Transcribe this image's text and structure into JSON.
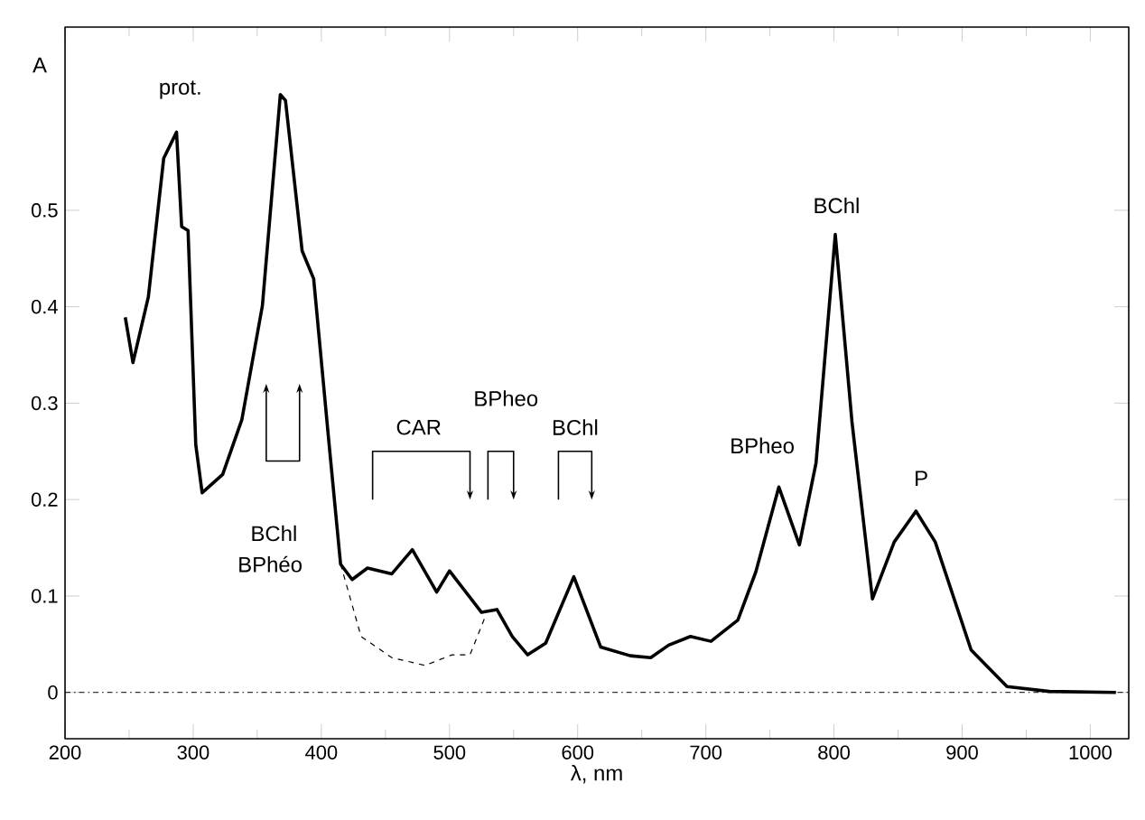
{
  "chart_data": {
    "type": "line",
    "xlabel": "λ, nm",
    "ylabel": "A",
    "xlim": [
      200,
      1030
    ],
    "ylim": [
      -0.048,
      0.69
    ],
    "xticks": [
      200,
      300,
      400,
      500,
      600,
      700,
      800,
      900,
      1000
    ],
    "yticks": [
      0,
      0.1,
      0.2,
      0.3,
      0.4,
      0.5
    ],
    "grid": false,
    "legend": false,
    "marker": "none",
    "series": [
      {
        "color": "#000000",
        "line_style": "solid",
        "x": [
          247,
          253,
          265,
          277,
          287,
          291,
          296,
          302,
          307,
          323,
          338,
          354,
          368,
          372,
          385,
          394,
          406,
          415,
          424,
          436,
          455,
          471,
          490,
          500,
          525,
          537,
          549,
          561,
          575,
          597,
          618,
          641,
          657,
          671,
          688,
          704,
          725,
          739,
          757,
          773,
          786,
          801,
          814,
          830,
          847,
          864,
          879,
          907,
          935,
          968,
          1020
        ],
        "values": [
          0.389,
          0.342,
          0.41,
          0.554,
          0.581,
          0.483,
          0.479,
          0.257,
          0.207,
          0.226,
          0.283,
          0.401,
          0.62,
          0.614,
          0.458,
          0.429,
          0.258,
          0.133,
          0.117,
          0.129,
          0.123,
          0.148,
          0.104,
          0.126,
          0.083,
          0.086,
          0.058,
          0.039,
          0.051,
          0.12,
          0.047,
          0.038,
          0.036,
          0.049,
          0.058,
          0.053,
          0.075,
          0.125,
          0.213,
          0.153,
          0.238,
          0.475,
          0.281,
          0.097,
          0.156,
          0.188,
          0.156,
          0.044,
          0.006,
          0.001,
          0
        ]
      },
      {
        "color": "#000000",
        "line_style": "dashed",
        "x": [
          415,
          431,
          455,
          481,
          502,
          516,
          528
        ],
        "values": [
          0.133,
          0.058,
          0.036,
          0.028,
          0.039,
          0.039,
          0.079
        ]
      }
    ],
    "ref_lines": [
      {
        "axis": "y",
        "value": 0,
        "line_style": "dashdotted"
      }
    ],
    "annotations": [
      "prot.",
      "BChl",
      "BPhéo",
      "CAR",
      "BPheo",
      "BChl",
      "BPheo",
      "BChl",
      "P"
    ]
  }
}
